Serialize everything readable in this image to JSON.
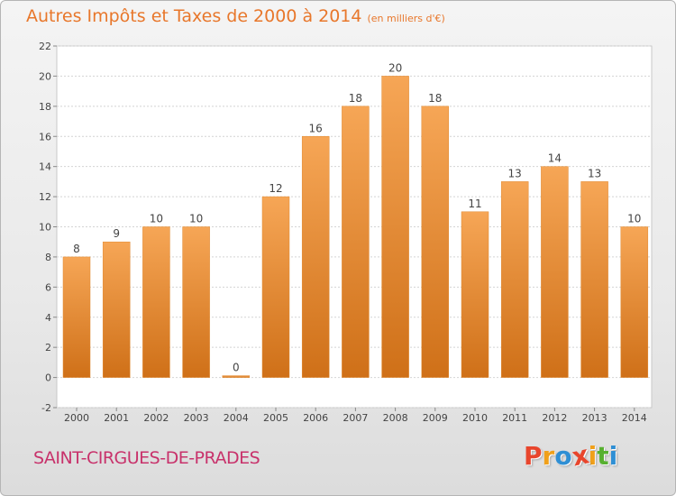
{
  "chart_data": {
    "type": "bar",
    "title": "Autres Impôts et Taxes de 2000 à 2014",
    "unit": "(en milliers d'€)",
    "categories": [
      "2000",
      "2001",
      "2002",
      "2003",
      "2004",
      "2005",
      "2006",
      "2007",
      "2008",
      "2009",
      "2010",
      "2011",
      "2012",
      "2013",
      "2014"
    ],
    "values": [
      8,
      9,
      10,
      10,
      0,
      12,
      16,
      18,
      20,
      18,
      11,
      13,
      14,
      13,
      10
    ],
    "ylim": [
      -2,
      22
    ],
    "yticks": [
      -2,
      0,
      2,
      4,
      6,
      8,
      10,
      12,
      14,
      16,
      18,
      20,
      22
    ],
    "grid": true,
    "bar_color_light": "#f6a656",
    "bar_color_dark": "#cf7018"
  },
  "commune": "SAINT-CIRGUES-DE-PRADES",
  "brand": {
    "letters": [
      "P",
      "r",
      "o",
      "x",
      "i",
      "t",
      "i"
    ],
    "colors": [
      "#e8452c",
      "#f0a01a",
      "#2f8fd4",
      "#e8452c",
      "#f0a01a",
      "#57b030",
      "#2f8fd4"
    ]
  }
}
